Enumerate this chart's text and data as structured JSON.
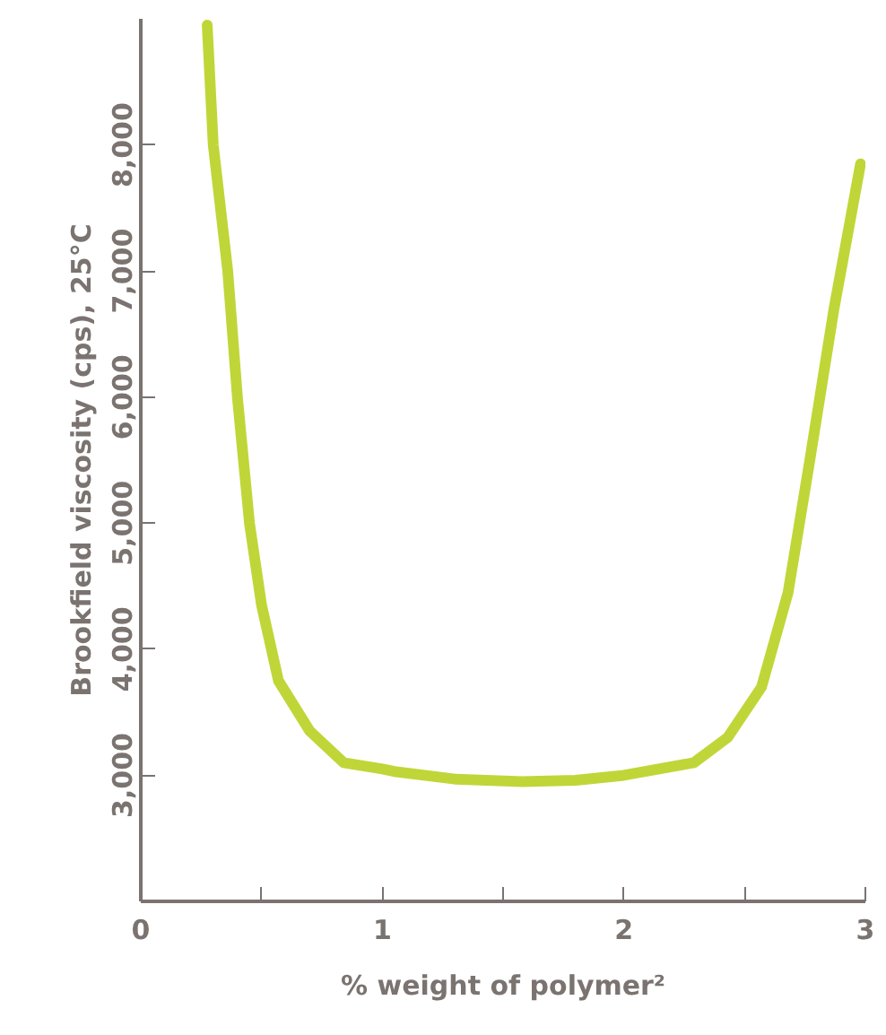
{
  "chart_data": {
    "type": "line",
    "xlabel": "% weight of polymer²",
    "ylabel": "Brookfield viscosity (cps), 25°C",
    "xlim": [
      0,
      3
    ],
    "ylim": [
      2000,
      9000
    ],
    "xticks": [
      0,
      {
        "value": 0.5,
        "label": null
      },
      1,
      {
        "value": 1.5,
        "label": null
      },
      2,
      {
        "value": 2.5,
        "label": null
      },
      3
    ],
    "yticks": [
      {
        "value": 3000,
        "label": "3,000"
      },
      {
        "value": 4000,
        "label": "4,000"
      },
      {
        "value": 5000,
        "label": "5,000"
      },
      {
        "value": 6000,
        "label": "6,000"
      },
      {
        "value": 7000,
        "label": "7,000"
      },
      {
        "value": 8000,
        "label": "8,000"
      }
    ],
    "grid": false,
    "marker": "none",
    "line_style": "solid",
    "series": [
      {
        "color": "#c0d638",
        "x": [
          0.275,
          0.3,
          0.36,
          0.4,
          0.45,
          0.5,
          0.57,
          0.7,
          0.84,
          1.0,
          1.05,
          1.3,
          1.58,
          1.8,
          2.0,
          2.29,
          2.43,
          2.57,
          2.68,
          2.77,
          2.87,
          2.98
        ],
        "values": [
          8950,
          8000,
          7000,
          6000,
          5000,
          4350,
          3750,
          3350,
          3100,
          3050,
          3030,
          2970,
          2950,
          2960,
          3000,
          3100,
          3300,
          3700,
          4450,
          5500,
          6700,
          7850
        ]
      }
    ]
  }
}
